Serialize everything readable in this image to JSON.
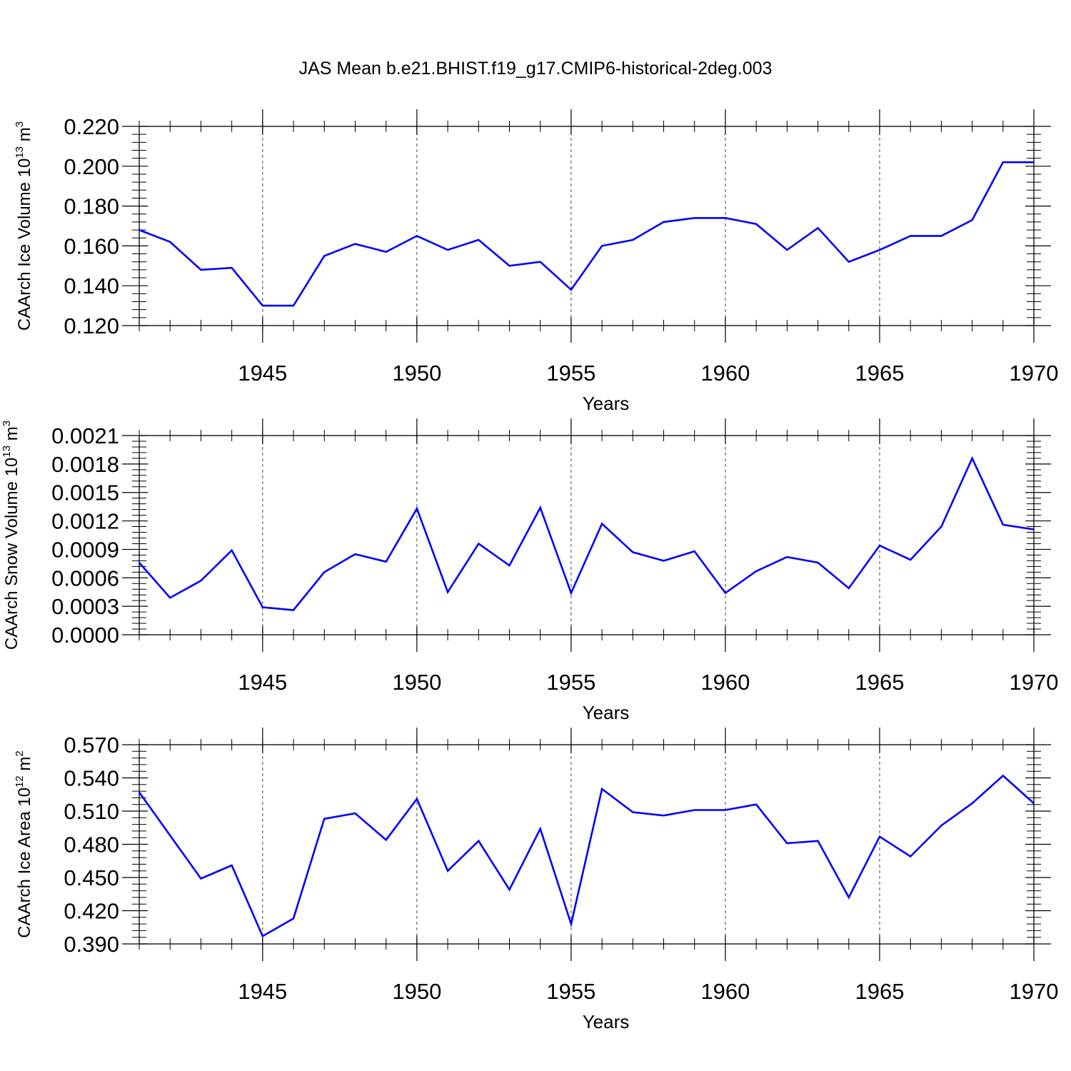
{
  "figure": {
    "title": "JAS Mean b.e21.BHIST.f19_g17.CMIP6-historical-2deg.003"
  },
  "colors": {
    "series_line": "#0000ff",
    "axes": "#000000",
    "grid": "#444444",
    "background": "#ffffff"
  },
  "chart_data": [
    {
      "type": "line",
      "title": "",
      "xlabel": "Years",
      "ylabel": {
        "text": "CAArch Ice Volume 10",
        "exponent": "13",
        "unit": " m",
        "unit_exponent": "3"
      },
      "xlim": [
        1941,
        1970
      ],
      "ylim": [
        0.12,
        0.22
      ],
      "yticks": [
        0.12,
        0.14,
        0.16,
        0.18,
        0.2,
        0.22
      ],
      "ytick_labels": [
        "0.120",
        "0.140",
        "0.160",
        "0.180",
        "0.200",
        "0.220"
      ],
      "xticks": [
        1945,
        1950,
        1955,
        1960,
        1965,
        1970
      ],
      "xtick_labels": [
        "1945",
        "1950",
        "1955",
        "1960",
        "1965",
        "1970"
      ],
      "grid": "vertical dashed at major x ticks",
      "legend": "none",
      "x": [
        1941,
        1942,
        1943,
        1944,
        1945,
        1946,
        1947,
        1948,
        1949,
        1950,
        1951,
        1952,
        1953,
        1954,
        1955,
        1956,
        1957,
        1958,
        1959,
        1960,
        1961,
        1962,
        1963,
        1964,
        1965,
        1966,
        1967,
        1968,
        1969,
        1970
      ],
      "y": [
        0.168,
        0.162,
        0.148,
        0.149,
        0.13,
        0.13,
        0.155,
        0.161,
        0.157,
        0.165,
        0.158,
        0.163,
        0.15,
        0.152,
        0.138,
        0.16,
        0.163,
        0.172,
        0.174,
        0.174,
        0.171,
        0.158,
        0.169,
        0.152,
        0.158,
        0.165,
        0.165,
        0.173,
        0.202,
        0.202
      ]
    },
    {
      "type": "line",
      "title": "",
      "xlabel": "Years",
      "ylabel": {
        "text": "CAArch Snow Volume 10",
        "exponent": "13",
        "unit": " m",
        "unit_exponent": "3"
      },
      "xlim": [
        1941,
        1970
      ],
      "ylim": [
        0.0,
        0.0021
      ],
      "yticks": [
        0.0,
        0.0003,
        0.0006,
        0.0009,
        0.0012,
        0.0015,
        0.0018,
        0.0021
      ],
      "ytick_labels": [
        "0.0000",
        "0.0003",
        "0.0006",
        "0.0009",
        "0.0012",
        "0.0015",
        "0.0018",
        "0.0021"
      ],
      "xticks": [
        1945,
        1950,
        1955,
        1960,
        1965,
        1970
      ],
      "xtick_labels": [
        "1945",
        "1950",
        "1955",
        "1960",
        "1965",
        "1970"
      ],
      "grid": "vertical dashed at major x ticks",
      "legend": "none",
      "x": [
        1941,
        1942,
        1943,
        1944,
        1945,
        1946,
        1947,
        1948,
        1949,
        1950,
        1951,
        1952,
        1953,
        1954,
        1955,
        1956,
        1957,
        1958,
        1959,
        1960,
        1961,
        1962,
        1963,
        1964,
        1965,
        1966,
        1967,
        1968,
        1969,
        1970
      ],
      "y": [
        0.00076,
        0.00039,
        0.00057,
        0.00089,
        0.00029,
        0.00026,
        0.00066,
        0.00085,
        0.00077,
        0.00133,
        0.00045,
        0.00096,
        0.00073,
        0.00134,
        0.00044,
        0.00117,
        0.00087,
        0.00078,
        0.00088,
        0.00044,
        0.00067,
        0.00082,
        0.00076,
        0.00049,
        0.00094,
        0.00079,
        0.00114,
        0.00186,
        0.00116,
        0.00111
      ]
    },
    {
      "type": "line",
      "title": "",
      "xlabel": "Years",
      "ylabel": {
        "text": "CAArch Ice Area 10",
        "exponent": "12",
        "unit": " m",
        "unit_exponent": "2"
      },
      "xlim": [
        1941,
        1970
      ],
      "ylim": [
        0.39,
        0.57
      ],
      "yticks": [
        0.39,
        0.42,
        0.45,
        0.48,
        0.51,
        0.54,
        0.57
      ],
      "ytick_labels": [
        "0.390",
        "0.420",
        "0.450",
        "0.480",
        "0.510",
        "0.540",
        "0.570"
      ],
      "xticks": [
        1945,
        1950,
        1955,
        1960,
        1965,
        1970
      ],
      "xtick_labels": [
        "1945",
        "1950",
        "1955",
        "1960",
        "1965",
        "1970"
      ],
      "grid": "vertical dashed at major x ticks",
      "legend": "none",
      "x": [
        1941,
        1942,
        1943,
        1944,
        1945,
        1946,
        1947,
        1948,
        1949,
        1950,
        1951,
        1952,
        1953,
        1954,
        1955,
        1956,
        1957,
        1958,
        1959,
        1960,
        1961,
        1962,
        1963,
        1964,
        1965,
        1966,
        1967,
        1968,
        1969,
        1970
      ],
      "y": [
        0.527,
        0.488,
        0.449,
        0.461,
        0.397,
        0.413,
        0.503,
        0.508,
        0.484,
        0.521,
        0.456,
        0.483,
        0.439,
        0.494,
        0.408,
        0.53,
        0.509,
        0.506,
        0.511,
        0.511,
        0.516,
        0.481,
        0.483,
        0.432,
        0.487,
        0.469,
        0.497,
        0.517,
        0.542,
        0.517
      ]
    }
  ]
}
